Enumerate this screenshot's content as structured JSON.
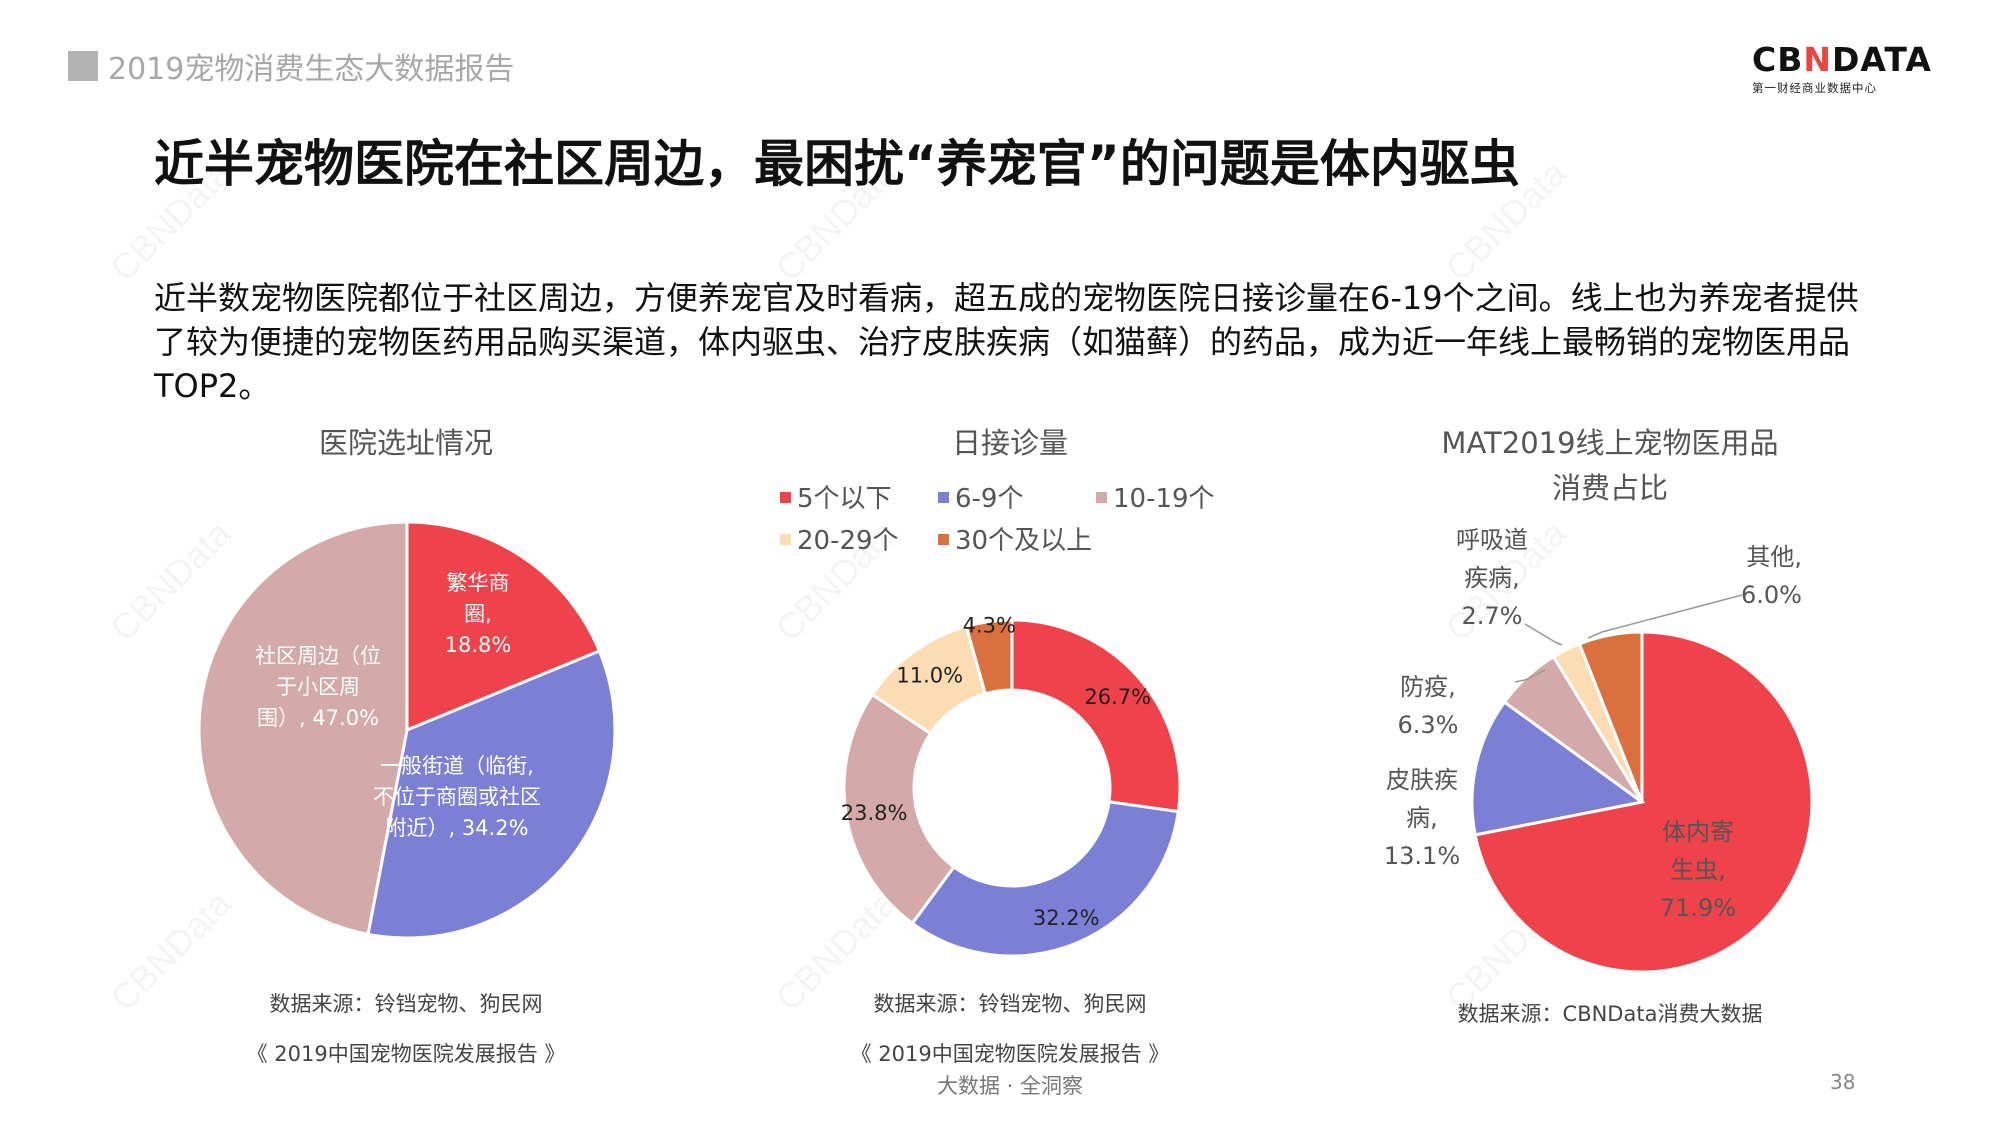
{
  "header": {
    "report_title": "2019宠物消费生态大数据报告",
    "logo_prefix": "CB",
    "logo_x": "N",
    "logo_suffix": "DATA",
    "logo_subtitle": "第一财经商业数据中心"
  },
  "main_title": "近半宠物医院在社区周边，最困扰“养宠官”的问题是体内驱虫",
  "body_text": "近半数宠物医院都位于社区周边，方便养宠官及时看病，超五成的宠物医院日接诊量在6-19个之间。线上也为养宠者提供了较为便捷的宠物医药用品购买渠道，体内驱虫、治疗皮肤疾病（如猫藓）的药品，成为近一年线上最畅销的宠物医用品TOP2。",
  "watermark": "CBNData",
  "chart_data": [
    {
      "type": "pie",
      "title": "医院选址情况",
      "slices": [
        {
          "label": "繁华商圈, 18.8%",
          "value": 18.8,
          "color": "#f0424a"
        },
        {
          "label": "一般街道（临街,不位于商圈或社区附近）, 34.2%",
          "value": 34.2,
          "color": "#7b7fd6"
        },
        {
          "label": "社区周边（位于小区周围）, 47.0%",
          "value": 47.0,
          "color": "#d4a9a9"
        }
      ],
      "source": "数据来源：铃铛宠物、狗民网",
      "source2": "《 2019中国宠物医院发展报告 》"
    },
    {
      "type": "donut",
      "title": "日接诊量",
      "legend": [
        "5个以下",
        "6-9个",
        "10-19个",
        "20-29个",
        "30个及以上"
      ],
      "slices": [
        {
          "name": "5个以下",
          "label": "26.7%",
          "value": 26.7,
          "color": "#f0424a"
        },
        {
          "name": "6-9个",
          "label": "32.2%",
          "value": 32.2,
          "color": "#7b7fd6"
        },
        {
          "name": "10-19个",
          "label": "23.8%",
          "value": 23.8,
          "color": "#d4a9a9"
        },
        {
          "name": "20-29个",
          "label": "11.0%",
          "value": 11.0,
          "color": "#fcdcb3"
        },
        {
          "name": "30个及以上",
          "label": "4.3%",
          "value": 4.3,
          "color": "#d9703e"
        }
      ],
      "source": "数据来源：铃铛宠物、狗民网",
      "source2": "《 2019中国宠物医院发展报告 》"
    },
    {
      "type": "pie",
      "title": "MAT2019线上宠物医用品",
      "title_line2": "消费占比",
      "slices": [
        {
          "label": "体内寄生虫, 71.9%",
          "value": 71.9,
          "color": "#f0424a"
        },
        {
          "label": "皮肤疾病, 13.1%",
          "value": 13.1,
          "color": "#7b7fd6"
        },
        {
          "label": "防疫, 6.3%",
          "value": 6.3,
          "color": "#d4a9a9"
        },
        {
          "label": "呼吸道疾病, 2.7%",
          "value": 2.7,
          "color": "#fcdcb3"
        },
        {
          "label": "其他, 6.0%",
          "value": 6.0,
          "color": "#d9703e"
        }
      ],
      "source": "数据来源：CBNData消费大数据"
    }
  ],
  "footer": {
    "center": "大数据 · 全洞察",
    "page_number": "38"
  }
}
